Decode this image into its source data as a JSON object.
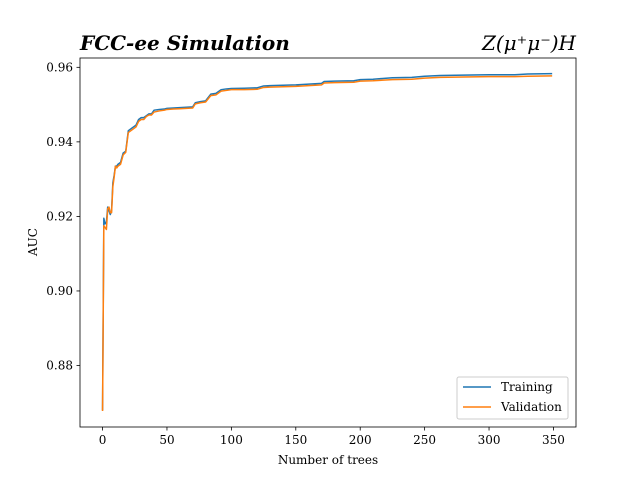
{
  "chart_data": {
    "type": "line",
    "title_left": "FCC-ee Simulation",
    "title_right": "Z(μ⁺μ⁻)H",
    "xlabel": "Number of trees",
    "ylabel": "AUC",
    "xlim": [
      -17.5,
      367.5
    ],
    "ylim": [
      0.8635,
      0.9625
    ],
    "xticks": [
      0,
      50,
      100,
      150,
      200,
      250,
      300,
      350
    ],
    "yticks": [
      0.88,
      0.9,
      0.92,
      0.94,
      0.96
    ],
    "ytick_labels": [
      "0.88",
      "0.90",
      "0.92",
      "0.94",
      "0.96"
    ],
    "grid": false,
    "legend_position": "lower-right",
    "series": [
      {
        "name": "Training",
        "color": "#1f77b4",
        "x": [
          0,
          1,
          2,
          3,
          4,
          5,
          6,
          7,
          8,
          9,
          10,
          11,
          12,
          14,
          16,
          18,
          20,
          22,
          24,
          26,
          28,
          30,
          32,
          34,
          36,
          38,
          40,
          44,
          48,
          50,
          55,
          60,
          65,
          70,
          72,
          76,
          80,
          84,
          88,
          92,
          96,
          100,
          110,
          120,
          125,
          130,
          140,
          150,
          160,
          170,
          172,
          180,
          195,
          200,
          210,
          225,
          240,
          250,
          262,
          280,
          300,
          320,
          330,
          349
        ],
        "y": [
          0.868,
          0.9195,
          0.918,
          0.9185,
          0.9225,
          0.9215,
          0.9205,
          0.9215,
          0.929,
          0.931,
          0.9335,
          0.9335,
          0.934,
          0.9345,
          0.937,
          0.9375,
          0.943,
          0.9435,
          0.944,
          0.9445,
          0.946,
          0.9465,
          0.9465,
          0.947,
          0.9475,
          0.9475,
          0.9485,
          0.9487,
          0.9488,
          0.949,
          0.9491,
          0.9492,
          0.9493,
          0.9494,
          0.9505,
          0.9508,
          0.951,
          0.9528,
          0.953,
          0.954,
          0.9542,
          0.9543,
          0.9544,
          0.9545,
          0.955,
          0.9551,
          0.9552,
          0.9553,
          0.9555,
          0.9557,
          0.9562,
          0.9563,
          0.9564,
          0.9567,
          0.9568,
          0.9572,
          0.9573,
          0.9576,
          0.9578,
          0.9579,
          0.958,
          0.958,
          0.9582,
          0.9583
        ]
      },
      {
        "name": "Validation",
        "color": "#ff7f0e",
        "x": [
          0,
          1,
          2,
          3,
          4,
          5,
          6,
          7,
          8,
          9,
          10,
          11,
          12,
          14,
          16,
          18,
          20,
          22,
          24,
          26,
          28,
          30,
          32,
          34,
          36,
          38,
          40,
          44,
          48,
          50,
          55,
          60,
          65,
          70,
          72,
          76,
          80,
          84,
          88,
          92,
          96,
          100,
          110,
          120,
          125,
          130,
          140,
          150,
          160,
          170,
          172,
          180,
          195,
          200,
          210,
          225,
          240,
          250,
          262,
          280,
          300,
          320,
          330,
          349
        ],
        "y": [
          0.8678,
          0.9175,
          0.917,
          0.9165,
          0.922,
          0.9225,
          0.921,
          0.921,
          0.928,
          0.9305,
          0.9335,
          0.933,
          0.9335,
          0.934,
          0.9365,
          0.9372,
          0.9425,
          0.943,
          0.9435,
          0.944,
          0.9455,
          0.946,
          0.946,
          0.9468,
          0.9472,
          0.9472,
          0.948,
          0.9483,
          0.9485,
          0.9487,
          0.9488,
          0.9489,
          0.949,
          0.9491,
          0.9502,
          0.9505,
          0.9507,
          0.9524,
          0.9526,
          0.9536,
          0.9538,
          0.954,
          0.954,
          0.9541,
          0.9546,
          0.9547,
          0.9548,
          0.9549,
          0.9551,
          0.9553,
          0.9558,
          0.9559,
          0.956,
          0.9563,
          0.9564,
          0.9567,
          0.9568,
          0.9571,
          0.9573,
          0.9574,
          0.9575,
          0.9575,
          0.9576,
          0.9577
        ]
      }
    ]
  }
}
